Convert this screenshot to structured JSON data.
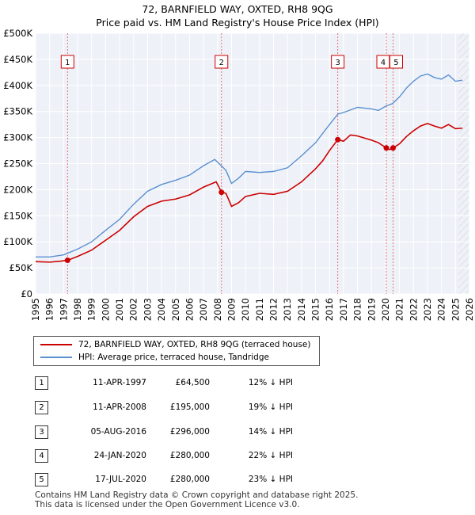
{
  "chart_data": {
    "type": "line",
    "title": "72, BARNFIELD WAY, OXTED, RH8 9QG",
    "subtitle": "Price paid vs. HM Land Registry's House Price Index (HPI)",
    "ylim": [
      0,
      500000
    ],
    "y_ticks": [
      0,
      50000,
      100000,
      150000,
      200000,
      250000,
      300000,
      350000,
      400000,
      450000,
      500000
    ],
    "y_tick_labels": [
      "£0",
      "£50K",
      "£100K",
      "£150K",
      "£200K",
      "£250K",
      "£300K",
      "£350K",
      "£400K",
      "£450K",
      "£500K"
    ],
    "xlim": [
      1995,
      2026
    ],
    "x_ticks": [
      1995,
      1996,
      1997,
      1998,
      1999,
      2000,
      2001,
      2002,
      2003,
      2004,
      2005,
      2006,
      2007,
      2008,
      2009,
      2010,
      2011,
      2012,
      2013,
      2014,
      2015,
      2016,
      2017,
      2018,
      2019,
      2020,
      2021,
      2022,
      2023,
      2024,
      2025,
      2026
    ],
    "x_tick_labels": [
      "1995",
      "1996",
      "1997",
      "1998",
      "1999",
      "2000",
      "2001",
      "2002",
      "2003",
      "2004",
      "2005",
      "2006",
      "2007",
      "2008",
      "2009",
      "2010",
      "2011",
      "2012",
      "2013",
      "2014",
      "2015",
      "2016",
      "2017",
      "2018",
      "2019",
      "2020",
      "2021",
      "2022",
      "2023",
      "2024",
      "2025",
      "2026"
    ],
    "grid": true,
    "hatched_after": 2025.2,
    "series": [
      {
        "name": "72, BARNFIELD WAY, OXTED, RH8 9QG (terraced house)",
        "color": "#cc0000",
        "points": [
          [
            1995.0,
            62000
          ],
          [
            1996.0,
            61000
          ],
          [
            1996.8,
            63000
          ],
          [
            1997.28,
            64500
          ],
          [
            1998.0,
            72000
          ],
          [
            1999.0,
            84000
          ],
          [
            2000.0,
            103000
          ],
          [
            2001.0,
            122000
          ],
          [
            2002.0,
            148000
          ],
          [
            2003.0,
            168000
          ],
          [
            2004.0,
            178000
          ],
          [
            2005.0,
            182000
          ],
          [
            2006.0,
            190000
          ],
          [
            2007.0,
            205000
          ],
          [
            2007.9,
            215000
          ],
          [
            2008.1,
            205000
          ],
          [
            2008.28,
            195000
          ],
          [
            2008.6,
            193000
          ],
          [
            2009.0,
            168000
          ],
          [
            2009.5,
            175000
          ],
          [
            2010.0,
            187000
          ],
          [
            2011.0,
            193000
          ],
          [
            2012.0,
            191000
          ],
          [
            2013.0,
            197000
          ],
          [
            2014.0,
            215000
          ],
          [
            2015.0,
            240000
          ],
          [
            2015.5,
            255000
          ],
          [
            2016.0,
            275000
          ],
          [
            2016.59,
            296000
          ],
          [
            2017.0,
            293000
          ],
          [
            2017.5,
            305000
          ],
          [
            2018.0,
            303000
          ],
          [
            2019.0,
            295000
          ],
          [
            2019.5,
            290000
          ],
          [
            2020.06,
            280000
          ],
          [
            2020.3,
            277000
          ],
          [
            2020.54,
            280000
          ],
          [
            2021.0,
            288000
          ],
          [
            2021.5,
            302000
          ],
          [
            2022.0,
            313000
          ],
          [
            2022.5,
            322000
          ],
          [
            2023.0,
            327000
          ],
          [
            2023.5,
            322000
          ],
          [
            2024.0,
            318000
          ],
          [
            2024.5,
            325000
          ],
          [
            2025.0,
            317000
          ],
          [
            2025.5,
            318000
          ]
        ]
      },
      {
        "name": "HPI: Average price, terraced house, Tandridge",
        "color": "#5b8fd0",
        "points": [
          [
            1995.0,
            71000
          ],
          [
            1996.0,
            71000
          ],
          [
            1997.0,
            75000
          ],
          [
            1998.0,
            86000
          ],
          [
            1999.0,
            100000
          ],
          [
            2000.0,
            122000
          ],
          [
            2001.0,
            143000
          ],
          [
            2002.0,
            172000
          ],
          [
            2003.0,
            197000
          ],
          [
            2004.0,
            210000
          ],
          [
            2005.0,
            218000
          ],
          [
            2006.0,
            228000
          ],
          [
            2007.0,
            246000
          ],
          [
            2007.8,
            258000
          ],
          [
            2008.3,
            245000
          ],
          [
            2008.6,
            237000
          ],
          [
            2009.0,
            212000
          ],
          [
            2009.5,
            222000
          ],
          [
            2010.0,
            235000
          ],
          [
            2011.0,
            233000
          ],
          [
            2012.0,
            235000
          ],
          [
            2013.0,
            242000
          ],
          [
            2014.0,
            265000
          ],
          [
            2015.0,
            290000
          ],
          [
            2016.0,
            325000
          ],
          [
            2016.6,
            345000
          ],
          [
            2017.0,
            348000
          ],
          [
            2018.0,
            358000
          ],
          [
            2019.0,
            355000
          ],
          [
            2019.5,
            352000
          ],
          [
            2020.0,
            360000
          ],
          [
            2020.5,
            365000
          ],
          [
            2021.0,
            378000
          ],
          [
            2021.5,
            395000
          ],
          [
            2022.0,
            408000
          ],
          [
            2022.5,
            418000
          ],
          [
            2023.0,
            422000
          ],
          [
            2023.5,
            415000
          ],
          [
            2024.0,
            412000
          ],
          [
            2024.5,
            420000
          ],
          [
            2025.0,
            408000
          ],
          [
            2025.5,
            410000
          ]
        ]
      }
    ],
    "events": [
      {
        "id": "1",
        "x": 1997.28,
        "y": 64500
      },
      {
        "id": "2",
        "x": 2008.28,
        "y": 195000
      },
      {
        "id": "3",
        "x": 2016.59,
        "y": 296000
      },
      {
        "id": "4",
        "x": 2020.06,
        "y": 280000
      },
      {
        "id": "5",
        "x": 2020.54,
        "y": 280000
      }
    ]
  },
  "legend": {
    "items": [
      {
        "label": "72, BARNFIELD WAY, OXTED, RH8 9QG (terraced house)",
        "color": "#cc0000"
      },
      {
        "label": "HPI: Average price, terraced house, Tandridge",
        "color": "#5b8fd0"
      }
    ]
  },
  "transactions": [
    {
      "num": "1",
      "date": "11-APR-1997",
      "price": "£64,500",
      "hpi": "12% ↓ HPI"
    },
    {
      "num": "2",
      "date": "11-APR-2008",
      "price": "£195,000",
      "hpi": "19% ↓ HPI"
    },
    {
      "num": "3",
      "date": "05-AUG-2016",
      "price": "£296,000",
      "hpi": "14% ↓ HPI"
    },
    {
      "num": "4",
      "date": "24-JAN-2020",
      "price": "£280,000",
      "hpi": "22% ↓ HPI"
    },
    {
      "num": "5",
      "date": "17-JUL-2020",
      "price": "£280,000",
      "hpi": "23% ↓ HPI"
    }
  ],
  "footer": {
    "line1": "Contains HM Land Registry data © Crown copyright and database right 2025.",
    "line2": "This data is licensed under the Open Government Licence v3.0."
  }
}
